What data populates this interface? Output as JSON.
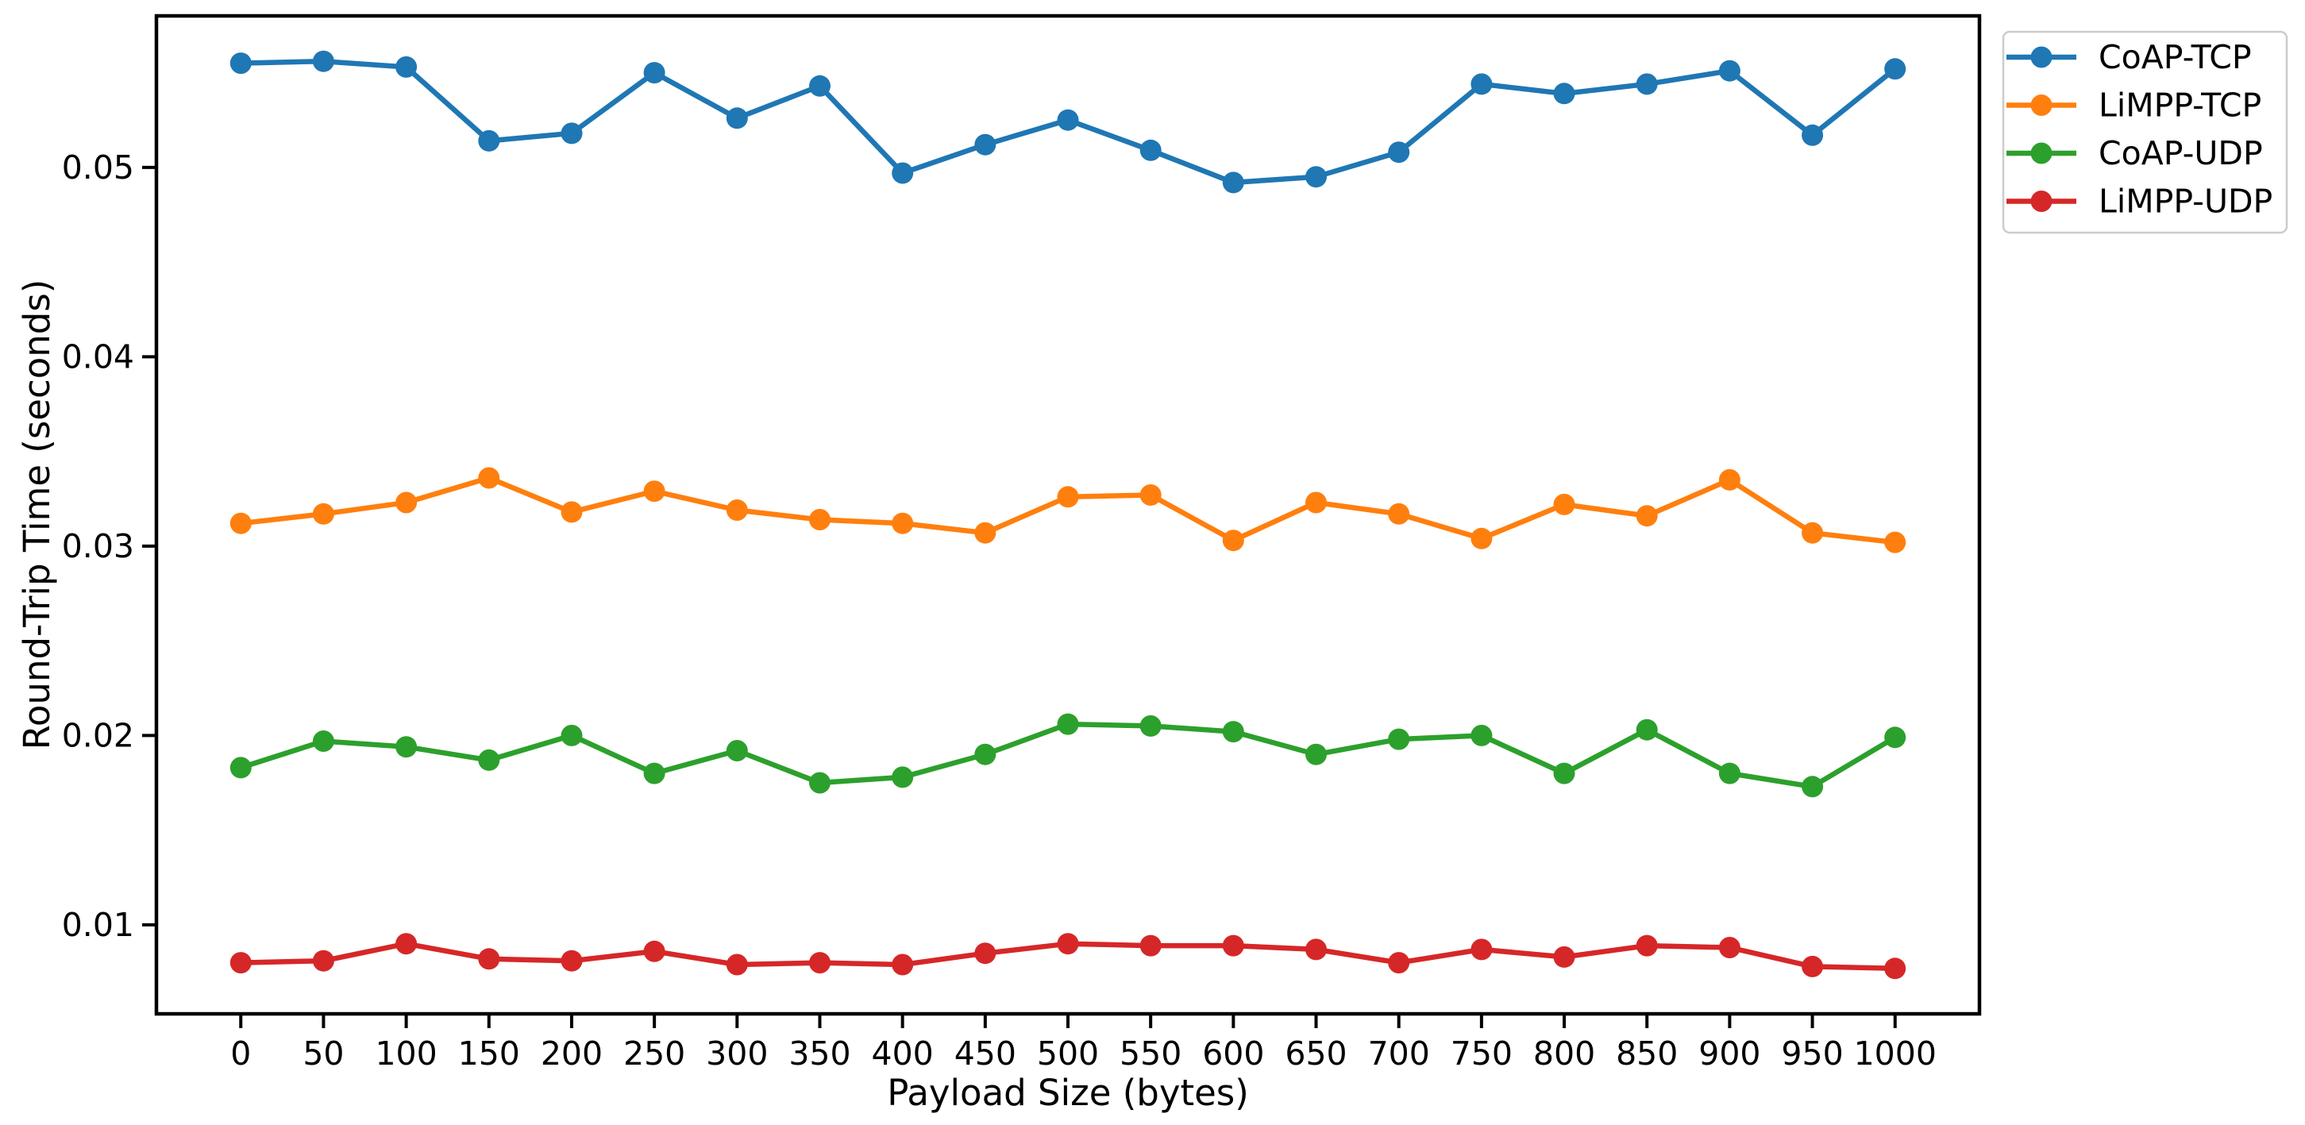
{
  "figure": {
    "background": "#ffffff",
    "text_color": "#000000",
    "spine_color": "#000000",
    "legend_border_color": "#cccccc"
  },
  "chart_data": {
    "type": "line",
    "title": "",
    "xlabel": "Payload Size (bytes)",
    "ylabel": "Round-Trip Time (seconds)",
    "x": [
      0,
      50,
      100,
      150,
      200,
      250,
      300,
      350,
      400,
      450,
      500,
      550,
      600,
      650,
      700,
      750,
      800,
      850,
      900,
      950,
      1000
    ],
    "series": [
      {
        "name": "CoAP-TCP",
        "color": "#1f77b4",
        "marker": "o",
        "values": [
          0.0555,
          0.0556,
          0.0553,
          0.0514,
          0.0518,
          0.055,
          0.0526,
          0.0543,
          0.0497,
          0.0512,
          0.0525,
          0.0509,
          0.0492,
          0.0495,
          0.0508,
          0.0544,
          0.0539,
          0.0544,
          0.0551,
          0.0517,
          0.0552
        ]
      },
      {
        "name": "LiMPP-TCP",
        "color": "#ff7f0e",
        "marker": "o",
        "values": [
          0.0312,
          0.0317,
          0.0323,
          0.0336,
          0.0318,
          0.0329,
          0.0319,
          0.0314,
          0.0312,
          0.0307,
          0.0326,
          0.0327,
          0.0303,
          0.0323,
          0.0317,
          0.0304,
          0.0322,
          0.0316,
          0.0335,
          0.0307,
          0.0302
        ]
      },
      {
        "name": "CoAP-UDP",
        "color": "#2ca02c",
        "marker": "o",
        "values": [
          0.0183,
          0.0197,
          0.0194,
          0.0187,
          0.02,
          0.018,
          0.0192,
          0.0175,
          0.0178,
          0.019,
          0.0206,
          0.0205,
          0.0202,
          0.019,
          0.0198,
          0.02,
          0.018,
          0.0203,
          0.018,
          0.0173,
          0.0199
        ]
      },
      {
        "name": "LiMPP-UDP",
        "color": "#d62728",
        "marker": "o",
        "values": [
          0.008,
          0.0081,
          0.009,
          0.0082,
          0.0081,
          0.0086,
          0.0079,
          0.008,
          0.0079,
          0.0085,
          0.009,
          0.0089,
          0.0089,
          0.0087,
          0.008,
          0.0087,
          0.0083,
          0.0089,
          0.0088,
          0.0078,
          0.0077
        ]
      }
    ],
    "xticks": [
      0,
      50,
      100,
      150,
      200,
      250,
      300,
      350,
      400,
      450,
      500,
      550,
      600,
      650,
      700,
      750,
      800,
      850,
      900,
      950,
      1000
    ],
    "xtick_labels": [
      "0",
      "50",
      "100",
      "150",
      "200",
      "250",
      "300",
      "350",
      "400",
      "450",
      "500",
      "550",
      "600",
      "650",
      "700",
      "750",
      "800",
      "850",
      "900",
      "950",
      "1000"
    ],
    "yticks": [
      0.01,
      0.02,
      0.03,
      0.04,
      0.05
    ],
    "ytick_labels": [
      "0.01",
      "0.02",
      "0.03",
      "0.04",
      "0.05"
    ],
    "xlim": [
      -51,
      1051
    ],
    "ylim": [
      0.0053,
      0.058
    ],
    "grid": false,
    "legend": {
      "position": "upper right",
      "entries": [
        "CoAP-TCP",
        "LiMPP-TCP",
        "CoAP-UDP",
        "LiMPP-UDP"
      ]
    }
  }
}
